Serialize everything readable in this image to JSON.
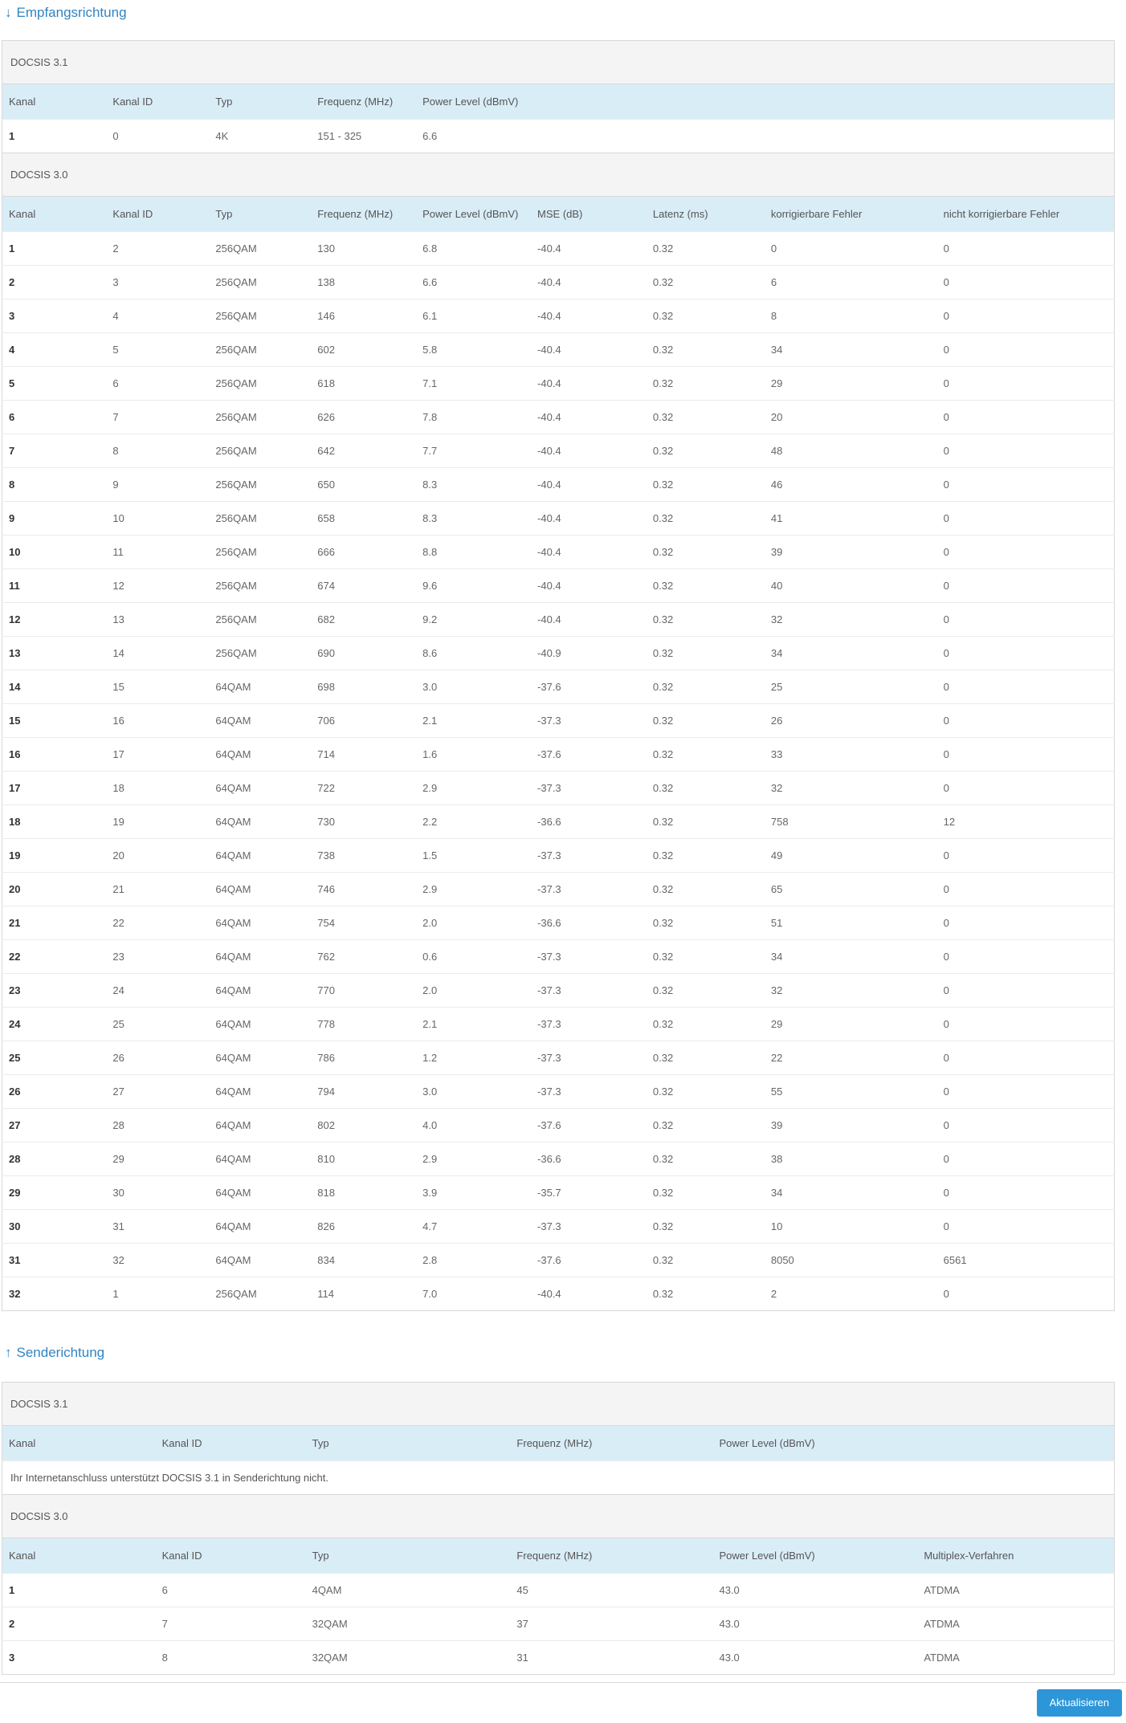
{
  "colors": {
    "accent": "#2d96d8",
    "heading_blue": "#3184c2",
    "header_row_bg": "#d9edf7",
    "group_row_bg": "#f4f4f4"
  },
  "receive": {
    "heading_arrow": "↓",
    "heading_label": "Empfangsrichtung",
    "docsis31": {
      "group_label": "DOCSIS 3.1",
      "columns": [
        "Kanal",
        "Kanal ID",
        "Typ",
        "Frequenz (MHz)",
        "Power Level (dBmV)"
      ],
      "rows": [
        [
          "1",
          "0",
          "4K",
          "151 - 325",
          "6.6"
        ]
      ]
    },
    "docsis30": {
      "group_label": "DOCSIS 3.0",
      "columns": [
        "Kanal",
        "Kanal ID",
        "Typ",
        "Frequenz (MHz)",
        "Power Level (dBmV)",
        "MSE (dB)",
        "Latenz (ms)",
        "korrigierbare Fehler",
        "nicht korrigierbare Fehler"
      ],
      "rows": [
        [
          "1",
          "2",
          "256QAM",
          "130",
          "6.8",
          "-40.4",
          "0.32",
          "0",
          "0"
        ],
        [
          "2",
          "3",
          "256QAM",
          "138",
          "6.6",
          "-40.4",
          "0.32",
          "6",
          "0"
        ],
        [
          "3",
          "4",
          "256QAM",
          "146",
          "6.1",
          "-40.4",
          "0.32",
          "8",
          "0"
        ],
        [
          "4",
          "5",
          "256QAM",
          "602",
          "5.8",
          "-40.4",
          "0.32",
          "34",
          "0"
        ],
        [
          "5",
          "6",
          "256QAM",
          "618",
          "7.1",
          "-40.4",
          "0.32",
          "29",
          "0"
        ],
        [
          "6",
          "7",
          "256QAM",
          "626",
          "7.8",
          "-40.4",
          "0.32",
          "20",
          "0"
        ],
        [
          "7",
          "8",
          "256QAM",
          "642",
          "7.7",
          "-40.4",
          "0.32",
          "48",
          "0"
        ],
        [
          "8",
          "9",
          "256QAM",
          "650",
          "8.3",
          "-40.4",
          "0.32",
          "46",
          "0"
        ],
        [
          "9",
          "10",
          "256QAM",
          "658",
          "8.3",
          "-40.4",
          "0.32",
          "41",
          "0"
        ],
        [
          "10",
          "11",
          "256QAM",
          "666",
          "8.8",
          "-40.4",
          "0.32",
          "39",
          "0"
        ],
        [
          "11",
          "12",
          "256QAM",
          "674",
          "9.6",
          "-40.4",
          "0.32",
          "40",
          "0"
        ],
        [
          "12",
          "13",
          "256QAM",
          "682",
          "9.2",
          "-40.4",
          "0.32",
          "32",
          "0"
        ],
        [
          "13",
          "14",
          "256QAM",
          "690",
          "8.6",
          "-40.9",
          "0.32",
          "34",
          "0"
        ],
        [
          "14",
          "15",
          "64QAM",
          "698",
          "3.0",
          "-37.6",
          "0.32",
          "25",
          "0"
        ],
        [
          "15",
          "16",
          "64QAM",
          "706",
          "2.1",
          "-37.3",
          "0.32",
          "26",
          "0"
        ],
        [
          "16",
          "17",
          "64QAM",
          "714",
          "1.6",
          "-37.6",
          "0.32",
          "33",
          "0"
        ],
        [
          "17",
          "18",
          "64QAM",
          "722",
          "2.9",
          "-37.3",
          "0.32",
          "32",
          "0"
        ],
        [
          "18",
          "19",
          "64QAM",
          "730",
          "2.2",
          "-36.6",
          "0.32",
          "758",
          "12"
        ],
        [
          "19",
          "20",
          "64QAM",
          "738",
          "1.5",
          "-37.3",
          "0.32",
          "49",
          "0"
        ],
        [
          "20",
          "21",
          "64QAM",
          "746",
          "2.9",
          "-37.3",
          "0.32",
          "65",
          "0"
        ],
        [
          "21",
          "22",
          "64QAM",
          "754",
          "2.0",
          "-36.6",
          "0.32",
          "51",
          "0"
        ],
        [
          "22",
          "23",
          "64QAM",
          "762",
          "0.6",
          "-37.3",
          "0.32",
          "34",
          "0"
        ],
        [
          "23",
          "24",
          "64QAM",
          "770",
          "2.0",
          "-37.3",
          "0.32",
          "32",
          "0"
        ],
        [
          "24",
          "25",
          "64QAM",
          "778",
          "2.1",
          "-37.3",
          "0.32",
          "29",
          "0"
        ],
        [
          "25",
          "26",
          "64QAM",
          "786",
          "1.2",
          "-37.3",
          "0.32",
          "22",
          "0"
        ],
        [
          "26",
          "27",
          "64QAM",
          "794",
          "3.0",
          "-37.3",
          "0.32",
          "55",
          "0"
        ],
        [
          "27",
          "28",
          "64QAM",
          "802",
          "4.0",
          "-37.6",
          "0.32",
          "39",
          "0"
        ],
        [
          "28",
          "29",
          "64QAM",
          "810",
          "2.9",
          "-36.6",
          "0.32",
          "38",
          "0"
        ],
        [
          "29",
          "30",
          "64QAM",
          "818",
          "3.9",
          "-35.7",
          "0.32",
          "34",
          "0"
        ],
        [
          "30",
          "31",
          "64QAM",
          "826",
          "4.7",
          "-37.3",
          "0.32",
          "10",
          "0"
        ],
        [
          "31",
          "32",
          "64QAM",
          "834",
          "2.8",
          "-37.6",
          "0.32",
          "8050",
          "6561"
        ],
        [
          "32",
          "1",
          "256QAM",
          "114",
          "7.0",
          "-40.4",
          "0.32",
          "2",
          "0"
        ]
      ]
    }
  },
  "send": {
    "heading_arrow": "↑",
    "heading_label": "Senderichtung",
    "docsis31": {
      "group_label": "DOCSIS 3.1",
      "columns": [
        "Kanal",
        "Kanal ID",
        "Typ",
        "Frequenz (MHz)",
        "Power Level (dBmV)"
      ],
      "message": "Ihr Internetanschluss unterstützt DOCSIS 3.1 in Senderichtung nicht."
    },
    "docsis30": {
      "group_label": "DOCSIS 3.0",
      "columns": [
        "Kanal",
        "Kanal ID",
        "Typ",
        "Frequenz (MHz)",
        "Power Level (dBmV)",
        "Multiplex-Verfahren"
      ],
      "rows": [
        [
          "1",
          "6",
          "4QAM",
          "45",
          "43.0",
          "ATDMA"
        ],
        [
          "2",
          "7",
          "32QAM",
          "37",
          "43.0",
          "ATDMA"
        ],
        [
          "3",
          "8",
          "32QAM",
          "31",
          "43.0",
          "ATDMA"
        ]
      ]
    }
  },
  "footer": {
    "refresh_label": "Aktualisieren"
  }
}
